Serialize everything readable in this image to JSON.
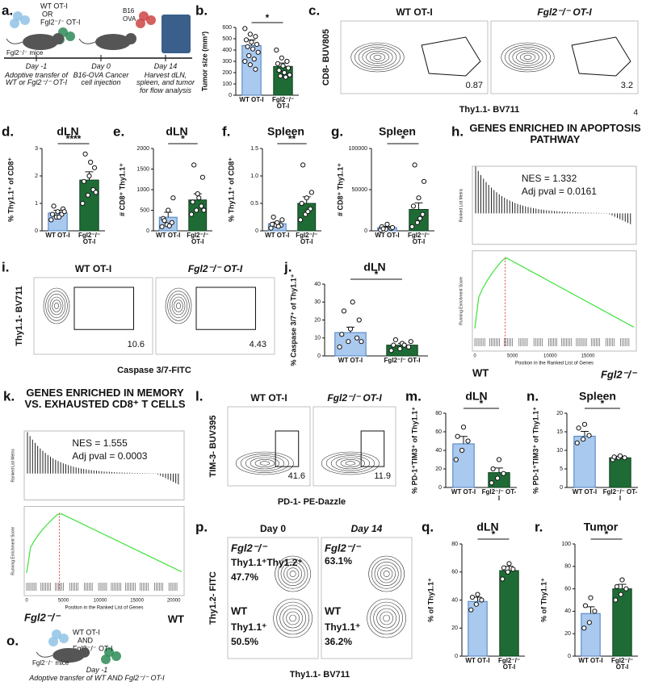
{
  "chart_data": [
    {
      "type": "bar",
      "panel": "b.",
      "y_label": "Tumor size (mm³)",
      "categories": [
        "WT OT-I",
        "Fgl2⁻/⁻ OT-I"
      ],
      "values": [
        440,
        255
      ],
      "errors": [
        50,
        30
      ],
      "colors": [
        "#a9c9ee",
        "#1f6b35"
      ],
      "points": [
        [
          590,
          540,
          520,
          490,
          470,
          450,
          430,
          410,
          380,
          350,
          320,
          300,
          270,
          230
        ],
        [
          400,
          330,
          300,
          280,
          260,
          240,
          220,
          200,
          180,
          170,
          160
        ]
      ],
      "significance": "*",
      "ylim": [
        0,
        600
      ],
      "yticks": [
        0,
        100,
        200,
        300,
        400,
        500,
        600
      ]
    },
    {
      "type": "bar",
      "panel": "d.",
      "title": "dLN",
      "y_label": "% Thy1.1⁺ of CD8⁺",
      "categories": [
        "WT OT-I",
        "Fgl2⁻/⁻ OT-I"
      ],
      "values": [
        0.65,
        1.85
      ],
      "errors": [
        0.1,
        0.3
      ],
      "colors": [
        "#a9c9ee",
        "#1f6b35"
      ],
      "points": [
        [
          0.4,
          0.5,
          0.6,
          0.6,
          0.7,
          0.8,
          0.9,
          0.5,
          0.7
        ],
        [
          1.0,
          1.3,
          1.5,
          1.8,
          2.0,
          2.3,
          2.8,
          2.5,
          1.4
        ]
      ],
      "significance": "****",
      "ylim": [
        0,
        3
      ],
      "yticks": [
        0,
        1,
        2,
        3
      ]
    },
    {
      "type": "bar",
      "panel": "e.",
      "title": "dLN",
      "y_label": "# CD8⁺ Thy1.1⁺",
      "categories": [
        "WT OT-I",
        "Fgl2⁻/⁻ OT-I"
      ],
      "values": [
        330,
        750
      ],
      "errors": [
        120,
        150
      ],
      "colors": [
        "#a9c9ee",
        "#1f6b35"
      ],
      "points": [
        [
          100,
          150,
          200,
          300,
          500,
          800,
          250,
          120
        ],
        [
          400,
          500,
          600,
          700,
          900,
          1300,
          1600,
          800,
          500
        ]
      ],
      "significance": "*",
      "ylim": [
        0,
        2000
      ],
      "yticks": [
        0,
        500,
        1000,
        1500,
        2000
      ]
    },
    {
      "type": "bar",
      "panel": "f.",
      "title": "Spleen",
      "y_label": "% Thy1.1⁺ of CD8⁺",
      "categories": [
        "WT OT-I",
        "Fgl2⁻/⁻ OT-I"
      ],
      "values": [
        0.13,
        0.5
      ],
      "errors": [
        0.03,
        0.12
      ],
      "colors": [
        "#a9c9ee",
        "#1f6b35"
      ],
      "points": [
        [
          0.05,
          0.1,
          0.1,
          0.12,
          0.15,
          0.2,
          0.25,
          0.08
        ],
        [
          0.2,
          0.3,
          0.4,
          0.5,
          0.6,
          0.7,
          1.2,
          0.35
        ]
      ],
      "significance": "**",
      "ylim": [
        0,
        1.5
      ],
      "yticks": [
        0,
        0.5,
        {
          "value": 1,
          "label": "1.0"
        },
        1.5
      ]
    },
    {
      "type": "bar",
      "panel": "g.",
      "title": "Spleen",
      "y_label": "# CD8⁺ Thy1.1⁺",
      "categories": [
        "WT OT-I",
        "Fgl2⁻/⁻ OT-I"
      ],
      "values": [
        4000,
        26000
      ],
      "errors": [
        1200,
        8000
      ],
      "colors": [
        "#a9c9ee",
        "#1f6b35"
      ],
      "points": [
        [
          1000,
          2000,
          3000,
          5000,
          8000,
          4000,
          2500
        ],
        [
          5000,
          10000,
          20000,
          30000,
          40000,
          60000,
          80000,
          15000
        ]
      ],
      "significance": "*",
      "ylim": [
        0,
        100000
      ],
      "yticks": [
        0,
        50000,
        100000
      ]
    },
    {
      "type": "bar",
      "panel": "j.",
      "title": "dLN",
      "y_label": "% Caspase 3/7⁺ of Thy1.1⁺",
      "categories": [
        "WT OT-I",
        "Fgl2⁻/⁻ OT-I"
      ],
      "values": [
        13,
        6
      ],
      "errors": [
        3,
        1
      ],
      "colors": [
        "#a9c9ee",
        "#1f6b35"
      ],
      "points": [
        [
          5,
          8,
          10,
          12,
          15,
          20,
          25,
          30,
          8
        ],
        [
          3,
          4,
          5,
          6,
          7,
          8,
          9,
          6
        ]
      ],
      "significance": "*",
      "ylim": [
        0,
        40
      ],
      "yticks": [
        0,
        10,
        20,
        30,
        40
      ]
    },
    {
      "type": "bar",
      "panel": "m.",
      "title": "dLN",
      "y_label": "% PD-1⁺TIM3⁺ of Thy1.1⁺",
      "categories": [
        "WT OT-I",
        "Fgl2⁻/⁻ OT-I"
      ],
      "values": [
        47,
        16
      ],
      "errors": [
        8,
        5
      ],
      "colors": [
        "#a9c9ee",
        "#1f6b35"
      ],
      "points": [
        [
          30,
          40,
          50,
          55,
          65
        ],
        [
          5,
          10,
          15,
          20,
          30
        ]
      ],
      "significance": "*",
      "ylim": [
        0,
        80
      ],
      "yticks": [
        0,
        20,
        40,
        60,
        80
      ]
    },
    {
      "type": "bar",
      "panel": "n.",
      "title": "Spleen",
      "y_label": "% PD-1⁺TIM3⁺ of Thy1.1⁺",
      "categories": [
        "WT OT-I",
        "Fgl2⁻/⁻ OT-I"
      ],
      "values": [
        13.8,
        8
      ],
      "errors": [
        1.3,
        0.4
      ],
      "colors": [
        "#a9c9ee",
        "#1f6b35"
      ],
      "points": [
        [
          12,
          13,
          14,
          16,
          17
        ],
        [
          7.5,
          8,
          8,
          8.2,
          8.5
        ]
      ],
      "significance": "*",
      "ylim": [
        0,
        20
      ],
      "yticks": [
        0,
        5,
        10,
        15,
        20
      ]
    },
    {
      "type": "bar",
      "panel": "q.",
      "title": "dLN",
      "y_label": "% of Thy1.1⁺",
      "categories": [
        "WT OT-I",
        "Fgl2⁻/⁻ OT-I"
      ],
      "values": [
        39,
        61
      ],
      "errors": [
        3,
        3
      ],
      "colors": [
        "#a9c9ee",
        "#1f6b35"
      ],
      "points": [
        [
          33,
          37,
          40,
          42,
          44
        ],
        [
          55,
          60,
          62,
          63,
          66
        ]
      ],
      "significance": "*",
      "ylim": [
        0,
        80
      ],
      "yticks": [
        0,
        20,
        40,
        60,
        80
      ]
    },
    {
      "type": "bar",
      "panel": "r.",
      "title": "Tumor",
      "y_label": "% of Thy1.1⁺",
      "categories": [
        "WT OT-I",
        "Fgl2⁻/⁻ OT-I"
      ],
      "values": [
        38,
        60
      ],
      "errors": [
        6,
        4
      ],
      "colors": [
        "#a9c9ee",
        "#1f6b35"
      ],
      "points": [
        [
          25,
          30,
          40,
          45,
          52
        ],
        [
          50,
          55,
          60,
          62,
          68
        ]
      ],
      "significance": "*",
      "ylim": [
        0,
        100
      ],
      "yticks": [
        0,
        20,
        40,
        60,
        80,
        100
      ]
    }
  ],
  "panels": {
    "a": {
      "letter": "a.",
      "labels": [
        "WT OT-I",
        "OR",
        "Fgl2⁻/⁻ OT-I",
        "Fgl2⁻/⁻ mice",
        "B16",
        "OVA"
      ],
      "steps": [
        {
          "day": "Day -1",
          "text": "Adoptive transfer of WT or Fgl2⁻/⁻ OT-I"
        },
        {
          "day": "Day 0",
          "text": "B16-OVA Cancer cell injection"
        },
        {
          "day": "Day 14",
          "text": "Harvest dLN, spleen, and tumor for flow analysis"
        }
      ]
    },
    "c": {
      "letter": "c.",
      "plots": [
        {
          "title": "WT OT-I",
          "gate": "0.87"
        },
        {
          "title": "Fgl2⁻/⁻ OT-I",
          "gate": "3.2"
        }
      ],
      "y_label": "CD8- BUV805",
      "x_label": "Thy1.1- BV711",
      "corner_note": "4"
    },
    "h": {
      "letter": "h.",
      "title": "GENES ENRICHED IN APOPTOSIS PATHWAY",
      "nes": "NES = 1.332",
      "pval": "Adj pval = 0.0161",
      "top_y_label": "Ranked List Metric",
      "bottom_y_label": "Running Enrichment Score",
      "x_label": "Position in the Ranked List of Genes",
      "left": "WT",
      "right": "Fgl2⁻/⁻",
      "x_ticks": [
        "0",
        "5000",
        "10000",
        "15000"
      ]
    },
    "i": {
      "letter": "i.",
      "plots": [
        {
          "title": "WT OT-I",
          "gate": "10.6"
        },
        {
          "title": "Fgl2⁻/⁻ OT-I",
          "gate": "4.43"
        }
      ],
      "y_label": "Thy1.1- BV711",
      "x_label": "Caspase 3/7-FITC"
    },
    "k": {
      "letter": "k.",
      "title": "GENES ENRICHED IN MEMORY VS. EXHAUSTED CD8⁺ T CELLS",
      "nes": "NES = 1.555",
      "pval": "Adj pval = 0.0003",
      "top_y_label": "Ranked List Metric",
      "bottom_y_label": "Running Enrichment Score",
      "x_label": "Position in the Ranked List of Genes",
      "left": "Fgl2⁻/⁻",
      "right": "WT",
      "x_ticks": [
        "0",
        "5000",
        "10000",
        "15000",
        "20000"
      ]
    },
    "l": {
      "letter": "l.",
      "plots": [
        {
          "title": "WT OT-I",
          "gate": "41.6"
        },
        {
          "title": "Fgl2⁻/⁻ OT-I",
          "gate": "11.9"
        }
      ],
      "y_label": "TIM-3- BUV395",
      "x_label": "PD-1- PE-Dazzle"
    },
    "o": {
      "letter": "o.",
      "labels": [
        "WT OT-I",
        "AND",
        "Fgl2⁻/⁻ OT-I",
        "Fgl2⁻/⁻ mice"
      ],
      "day": "Day -1",
      "text": "Adoptive transfer of WT AND Fgl2⁻/⁻ OT-I"
    },
    "p": {
      "letter": "p.",
      "plots": [
        {
          "title": "Day 0",
          "top_label": "Fgl2⁻/⁻",
          "top_gate_name": "Thy1.1⁺Thy1.2⁺",
          "top_value": "47.7%",
          "bottom_label": "WT",
          "bottom_gate_name": "Thy1.1⁺",
          "bottom_value": "50.5%"
        },
        {
          "title": "Day 14",
          "top_label": "Fgl2⁻/⁻",
          "top_value": "63.1%",
          "bottom_label": "WT",
          "bottom_gate_name": "Thy1.1⁺",
          "bottom_value": "36.2%"
        }
      ],
      "y_label": "Thy1.2- FITC",
      "x_label": "Thy1.1- BV711"
    }
  }
}
